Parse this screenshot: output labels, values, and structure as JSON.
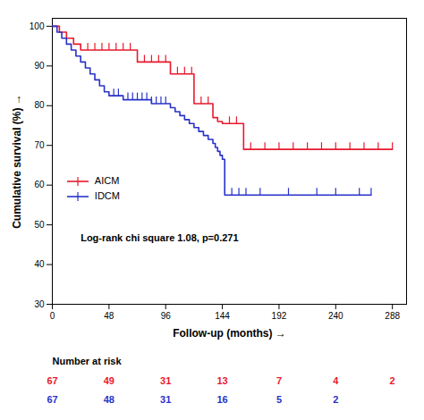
{
  "chart_data": {
    "type": "step",
    "xlabel": "Follow-up (months)",
    "ylabel": "Cumulative survival (%)",
    "xlim": [
      0,
      300
    ],
    "ylim": [
      30,
      102
    ],
    "xticks": [
      0,
      48,
      96,
      144,
      192,
      240,
      288
    ],
    "yticks": [
      30,
      40,
      50,
      60,
      70,
      80,
      90,
      100
    ],
    "grid": false,
    "legend": "lower left",
    "annotations": [
      "Log-rank chi square 1.08, p=0.271"
    ],
    "number_at_risk_label": "Number at risk",
    "series": [
      {
        "name": "AICM",
        "color": "#e8192c",
        "marker": "|",
        "x": [
          0,
          6,
          12,
          18,
          24,
          30,
          36,
          42,
          48,
          54,
          60,
          66,
          72,
          78,
          84,
          90,
          96,
          100,
          106,
          112,
          118,
          120,
          126,
          132,
          136,
          140,
          144,
          150,
          156,
          162,
          168,
          180,
          192,
          204,
          216,
          228,
          240,
          252,
          264,
          276,
          288
        ],
        "values": [
          100,
          98.5,
          97.0,
          95.5,
          94.0,
          94.0,
          94.0,
          94.0,
          94.0,
          94.0,
          94.0,
          94.0,
          91.0,
          91.0,
          91.0,
          91.0,
          91.0,
          88.0,
          88.0,
          88.0,
          88.0,
          80.5,
          80.5,
          80.5,
          77.0,
          76.0,
          75.5,
          75.5,
          75.5,
          69.0,
          69.0,
          69.0,
          69.0,
          69.0,
          69.0,
          69.0,
          69.0,
          69.0,
          69.0,
          69.0,
          69.0
        ],
        "censors_x": [
          30,
          36,
          42,
          48,
          54,
          60,
          66,
          78,
          84,
          90,
          96,
          106,
          112,
          118,
          126,
          132,
          150,
          156,
          168,
          180,
          192,
          204,
          216,
          228,
          240,
          252,
          264,
          276,
          288
        ],
        "censors_y": [
          94.0,
          94.0,
          94.0,
          94.0,
          94.0,
          94.0,
          94.0,
          91.0,
          91.0,
          91.0,
          91.0,
          88.0,
          88.0,
          88.0,
          80.5,
          80.5,
          75.5,
          75.5,
          69.0,
          69.0,
          69.0,
          69.0,
          69.0,
          69.0,
          69.0,
          69.0,
          69.0,
          69.0,
          69.0
        ],
        "risk_x": [
          0,
          48,
          96,
          144,
          192,
          240,
          288
        ],
        "risk_numbers": [
          67,
          49,
          31,
          13,
          7,
          4,
          2
        ]
      },
      {
        "name": "IDCM",
        "color": "#2832c8",
        "marker": "|",
        "x": [
          0,
          4,
          8,
          12,
          16,
          20,
          24,
          28,
          32,
          36,
          40,
          44,
          48,
          52,
          56,
          60,
          64,
          68,
          72,
          76,
          80,
          84,
          88,
          92,
          96,
          100,
          104,
          108,
          112,
          116,
          120,
          124,
          128,
          132,
          136,
          138,
          140,
          142,
          144,
          146,
          152,
          158,
          164,
          176,
          200,
          224,
          240,
          260,
          270
        ],
        "values": [
          100,
          98.5,
          97.0,
          95.5,
          94.0,
          92.5,
          91.0,
          89.5,
          88.0,
          86.5,
          85.0,
          83.5,
          82.5,
          82.5,
          82.5,
          81.5,
          81.5,
          81.5,
          81.5,
          81.5,
          81.5,
          80.5,
          80.5,
          80.5,
          80.5,
          79.5,
          78.5,
          77.5,
          76.5,
          75.5,
          74.5,
          73.5,
          72.5,
          71.5,
          70.5,
          69.5,
          68.5,
          67.5,
          66.5,
          57.5,
          57.5,
          57.5,
          57.5,
          57.5,
          57.5,
          57.5,
          57.5,
          57.5,
          57.5
        ],
        "censors_x": [
          52,
          56,
          64,
          68,
          72,
          76,
          80,
          84,
          88,
          92,
          96,
          152,
          158,
          164,
          176,
          200,
          224,
          240,
          260,
          270
        ],
        "censors_y": [
          82.5,
          82.5,
          81.5,
          81.5,
          81.5,
          81.5,
          81.5,
          80.5,
          80.5,
          80.5,
          80.5,
          57.5,
          57.5,
          57.5,
          57.5,
          57.5,
          57.5,
          57.5,
          57.5,
          57.5
        ],
        "risk_x": [
          0,
          48,
          96,
          144,
          192,
          240
        ],
        "risk_numbers": [
          67,
          48,
          31,
          16,
          5,
          2
        ]
      }
    ]
  }
}
